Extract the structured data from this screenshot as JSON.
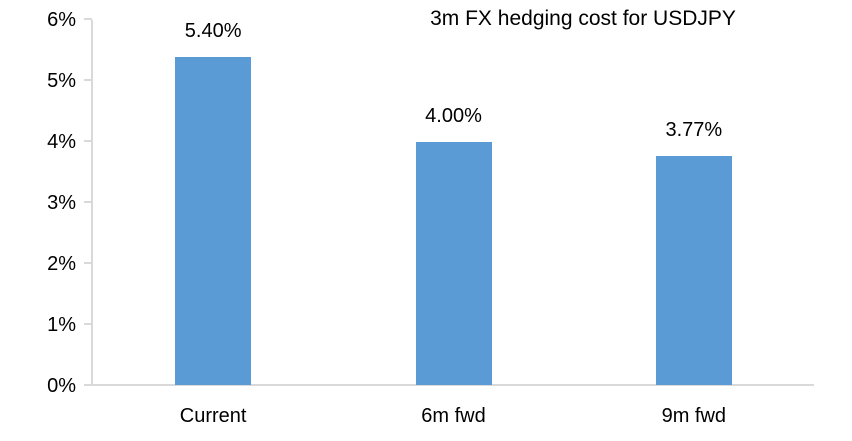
{
  "chart_data": {
    "type": "bar",
    "title": "3m FX hedging cost for USDJPY",
    "categories": [
      "Current",
      "6m fwd",
      "9m fwd"
    ],
    "values": [
      5.4,
      4.0,
      3.77
    ],
    "data_labels": [
      "5.40%",
      "4.00%",
      "3.77%"
    ],
    "xlabel": "",
    "ylabel": "",
    "ylim": [
      0,
      6
    ],
    "ytick_step": 1,
    "ytick_labels": [
      "0%",
      "1%",
      "2%",
      "3%",
      "4%",
      "5%",
      "6%"
    ],
    "grid": false,
    "legend": "none",
    "colors": {
      "bar": "#5B9BD5",
      "axis": "#D9D9D9",
      "text": "#000000",
      "background": "#FFFFFF"
    }
  }
}
